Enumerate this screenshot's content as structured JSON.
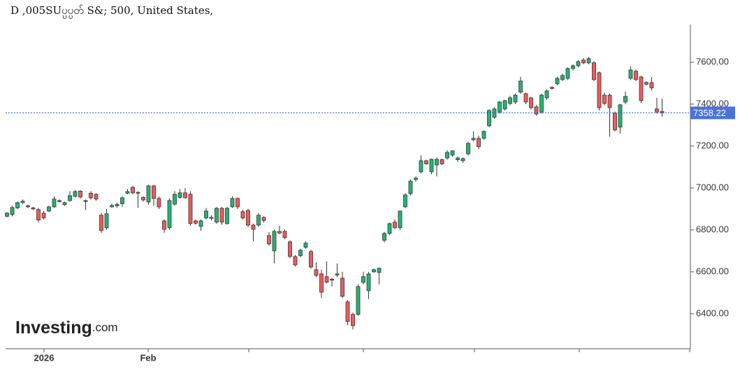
{
  "chart_data": {
    "type": "candlestick",
    "title": "D ,005SUပ္ပပ္ပတ် S&; 500, United States,",
    "logo": "Investing",
    "logo_suffix": ".com",
    "up_color": "#22b573",
    "down_color": "#ee5b5b",
    "ylim": [
      6233,
      7780
    ],
    "yticks": [
      {
        "value": 6400,
        "label": "6400.00"
      },
      {
        "value": 6600,
        "label": "6600.00"
      },
      {
        "value": 6800,
        "label": "6800.00"
      },
      {
        "value": 7000,
        "label": "7000.00"
      },
      {
        "value": 7200,
        "label": "7200.00"
      },
      {
        "value": 7400,
        "label": "7400.00"
      },
      {
        "value": 7600,
        "label": "7600.00"
      }
    ],
    "xtick_labels": [
      "2026",
      "Feb",
      null,
      null,
      null,
      null,
      null
    ],
    "last_price": 7358.22,
    "ohlc": [
      [
        6865,
        6885,
        6860,
        6880
      ],
      [
        6873,
        6915,
        6865,
        6907
      ],
      [
        6905,
        6935,
        6900,
        6930
      ],
      [
        6930,
        6945,
        6925,
        6937
      ],
      [
        6915,
        6920,
        6905,
        6910
      ],
      [
        6905,
        6910,
        6895,
        6900
      ],
      [
        6897,
        6905,
        6835,
        6847
      ],
      [
        6880,
        6890,
        6850,
        6857
      ],
      [
        6890,
        6915,
        6885,
        6910
      ],
      [
        6910,
        6960,
        6905,
        6947
      ],
      [
        6940,
        6945,
        6930,
        6935
      ],
      [
        6920,
        6935,
        6915,
        6930
      ],
      [
        6940,
        6985,
        6935,
        6963
      ],
      [
        6960,
        6990,
        6955,
        6983
      ],
      [
        6985,
        6990,
        6950,
        6957
      ],
      [
        6940,
        6945,
        6895,
        6935
      ],
      [
        6975,
        6985,
        6945,
        6953
      ],
      [
        6970,
        6975,
        6940,
        6947
      ],
      [
        6870,
        6880,
        6785,
        6797
      ],
      [
        6810,
        6900,
        6800,
        6877
      ],
      [
        6910,
        6925,
        6905,
        6917
      ],
      [
        6915,
        6930,
        6905,
        6922
      ],
      [
        6925,
        6960,
        6910,
        6953
      ],
      [
        6975,
        6995,
        6970,
        6983
      ],
      [
        7003,
        7010,
        6970,
        6977
      ],
      [
        6978,
        6985,
        6905,
        6975
      ],
      [
        6955,
        6960,
        6935,
        6943
      ],
      [
        6933,
        7015,
        6920,
        7010
      ],
      [
        7010,
        7015,
        6915,
        6950
      ],
      [
        6950,
        6960,
        6900,
        6910
      ],
      [
        6843,
        6850,
        6785,
        6803
      ],
      [
        6810,
        6950,
        6800,
        6940
      ],
      [
        6923,
        6985,
        6915,
        6970
      ],
      [
        6955,
        6995,
        6950,
        6977
      ],
      [
        6977,
        7000,
        6950,
        6953
      ],
      [
        6970,
        6985,
        6820,
        6830
      ],
      [
        6843,
        6850,
        6825,
        6832
      ],
      [
        6817,
        6850,
        6795,
        6843
      ],
      [
        6857,
        6905,
        6850,
        6890
      ],
      [
        6860,
        6870,
        6845,
        6855
      ],
      [
        6837,
        6910,
        6830,
        6903
      ],
      [
        6903,
        6910,
        6825,
        6837
      ],
      [
        6830,
        6910,
        6825,
        6903
      ],
      [
        6910,
        6960,
        6905,
        6950
      ],
      [
        6950,
        6955,
        6900,
        6910
      ],
      [
        6887,
        6895,
        6850,
        6857
      ],
      [
        6893,
        6900,
        6815,
        6823
      ],
      [
        6823,
        6830,
        6745,
        6803
      ],
      [
        6823,
        6880,
        6815,
        6870
      ],
      [
        6860,
        6865,
        6835,
        6845
      ],
      [
        6773,
        6790,
        6725,
        6733
      ],
      [
        6700,
        6800,
        6640,
        6793
      ],
      [
        6793,
        6820,
        6780,
        6785
      ],
      [
        6793,
        6800,
        6755,
        6763
      ],
      [
        6743,
        6750,
        6665,
        6673
      ],
      [
        6673,
        6680,
        6625,
        6633
      ],
      [
        6677,
        6710,
        6670,
        6703
      ],
      [
        6717,
        6745,
        6710,
        6737
      ],
      [
        6697,
        6705,
        6615,
        6623
      ],
      [
        6610,
        6645,
        6575,
        6583
      ],
      [
        6590,
        6610,
        6475,
        6503
      ],
      [
        6577,
        6650,
        6545,
        6550
      ],
      [
        6565,
        6570,
        6530,
        6560
      ],
      [
        6585,
        6640,
        6575,
        6590
      ],
      [
        6570,
        6600,
        6475,
        6483
      ],
      [
        6457,
        6465,
        6345,
        6363
      ],
      [
        6397,
        6405,
        6325,
        6343
      ],
      [
        6397,
        6540,
        6390,
        6530
      ],
      [
        6550,
        6600,
        6540,
        6577
      ],
      [
        6510,
        6600,
        6470,
        6590
      ],
      [
        6600,
        6615,
        6595,
        6610
      ],
      [
        6597,
        6620,
        6540,
        6617
      ],
      [
        6750,
        6790,
        6740,
        6783
      ],
      [
        6783,
        6835,
        6775,
        6830
      ],
      [
        6837,
        6850,
        6805,
        6810
      ],
      [
        6810,
        6890,
        6800,
        6890
      ],
      [
        6910,
        6975,
        6905,
        6967
      ],
      [
        6973,
        7040,
        6965,
        7033
      ],
      [
        7040,
        7055,
        7030,
        7047
      ],
      [
        7077,
        7155,
        7070,
        7130
      ],
      [
        7130,
        7135,
        7110,
        7115
      ],
      [
        7077,
        7140,
        7065,
        7137
      ],
      [
        7110,
        7145,
        7055,
        7137
      ],
      [
        7135,
        7140,
        7110,
        7115
      ],
      [
        7143,
        7180,
        7135,
        7170
      ],
      [
        7157,
        7180,
        7150,
        7177
      ],
      [
        7135,
        7150,
        7125,
        7143
      ],
      [
        7130,
        7145,
        7120,
        7140
      ],
      [
        7163,
        7220,
        7155,
        7213
      ],
      [
        7230,
        7270,
        7225,
        7237
      ],
      [
        7237,
        7250,
        7185,
        7197
      ],
      [
        7237,
        7275,
        7230,
        7270
      ],
      [
        7297,
        7375,
        7290,
        7370
      ],
      [
        7337,
        7385,
        7330,
        7377
      ],
      [
        7363,
        7415,
        7355,
        7410
      ],
      [
        7377,
        7420,
        7370,
        7417
      ],
      [
        7403,
        7440,
        7395,
        7430
      ],
      [
        7410,
        7450,
        7400,
        7443
      ],
      [
        7457,
        7530,
        7450,
        7510
      ],
      [
        7450,
        7455,
        7400,
        7410
      ],
      [
        7430,
        7435,
        7375,
        7383
      ],
      [
        7387,
        7395,
        7345,
        7353
      ],
      [
        7363,
        7450,
        7355,
        7443
      ],
      [
        7430,
        7470,
        7420,
        7463
      ],
      [
        7480,
        7485,
        7470,
        7475
      ],
      [
        7497,
        7530,
        7490,
        7523
      ],
      [
        7517,
        7545,
        7510,
        7537
      ],
      [
        7523,
        7575,
        7515,
        7570
      ],
      [
        7570,
        7590,
        7560,
        7583
      ],
      [
        7583,
        7610,
        7575,
        7603
      ],
      [
        7610,
        7620,
        7590,
        7597
      ],
      [
        7597,
        7625,
        7590,
        7617
      ],
      [
        7597,
        7605,
        7510,
        7517
      ],
      [
        7550,
        7555,
        7370,
        7383
      ],
      [
        7443,
        7455,
        7395,
        7403
      ],
      [
        7443,
        7450,
        7245,
        7383
      ],
      [
        7357,
        7365,
        7270,
        7277
      ],
      [
        7290,
        7400,
        7260,
        7397
      ],
      [
        7410,
        7460,
        7400,
        7437
      ],
      [
        7523,
        7580,
        7515,
        7563
      ],
      [
        7557,
        7565,
        7510,
        7517
      ],
      [
        7530,
        7535,
        7405,
        7417
      ],
      [
        7495,
        7510,
        7490,
        7503
      ],
      [
        7503,
        7530,
        7465,
        7477
      ],
      [
        7377,
        7430,
        7355,
        7363
      ],
      [
        7365,
        7425,
        7340,
        7358.22
      ]
    ]
  }
}
